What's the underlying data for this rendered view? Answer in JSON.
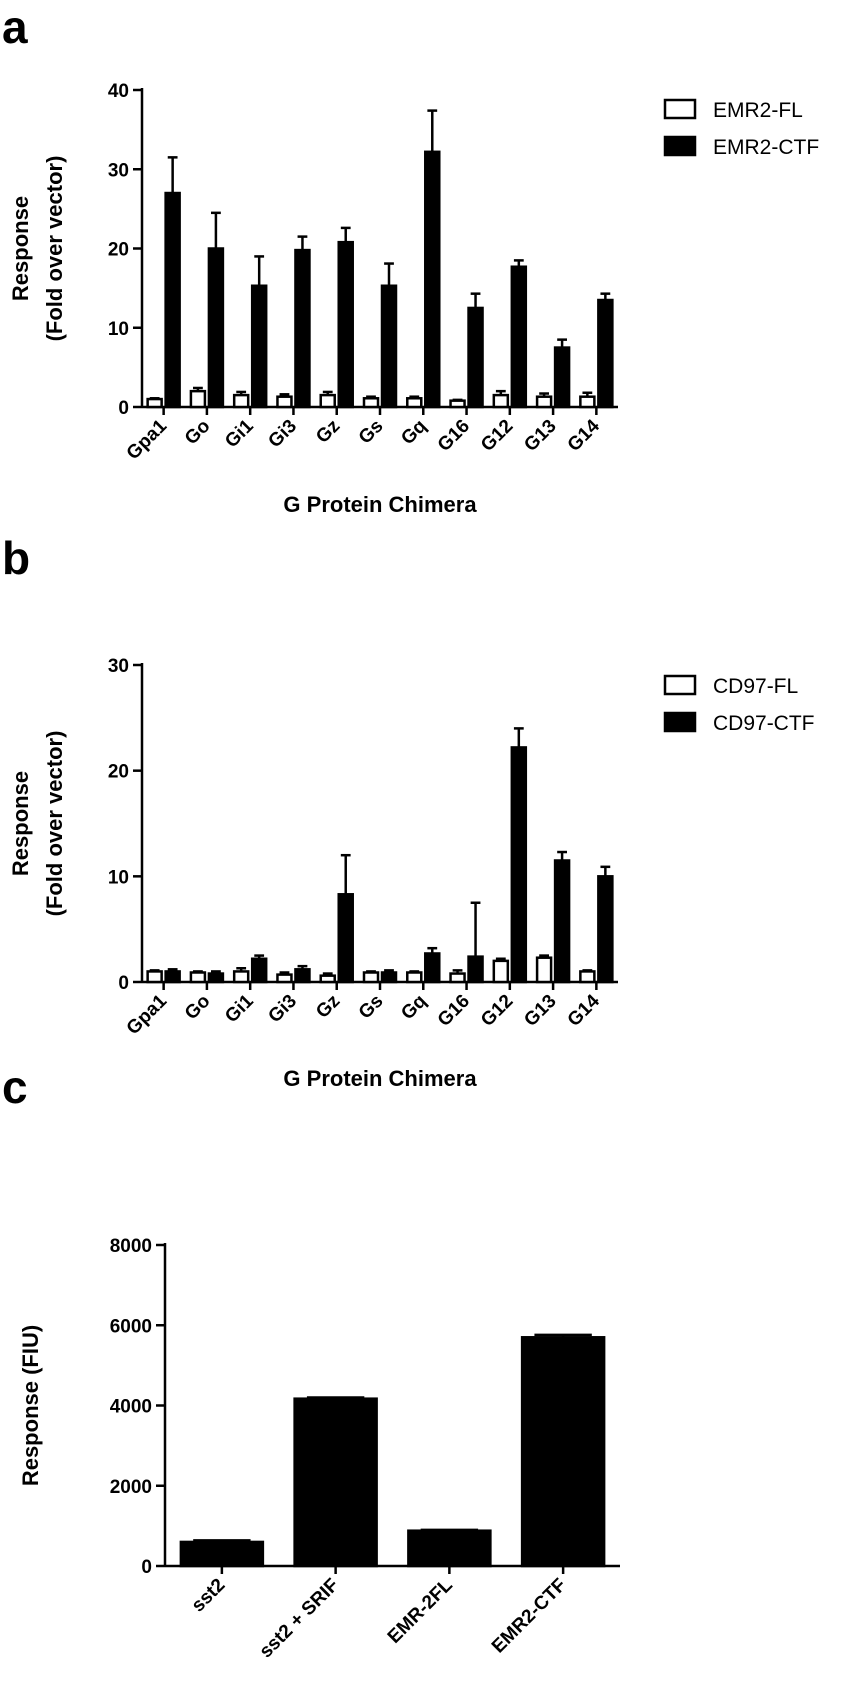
{
  "panels": [
    {
      "letter": "a"
    },
    {
      "letter": "b"
    },
    {
      "letter": "c"
    }
  ],
  "chart_data": [
    {
      "type": "bar",
      "categories": [
        "Gpa1",
        "Go",
        "Gi1",
        "Gi3",
        "Gz",
        "Gs",
        "Gq",
        "G16",
        "G12",
        "G13",
        "G14"
      ],
      "series": [
        {
          "name": "EMR2-FL",
          "fill": "#ffffff",
          "values": [
            1.0,
            2.0,
            1.5,
            1.3,
            1.5,
            1.1,
            1.1,
            0.8,
            1.5,
            1.3,
            1.3
          ],
          "errors": [
            0.1,
            0.4,
            0.4,
            0.3,
            0.4,
            0.2,
            0.2,
            0.1,
            0.5,
            0.4,
            0.5
          ]
        },
        {
          "name": "EMR2-CTF",
          "fill": "#000000",
          "values": [
            27,
            20,
            15.3,
            19.8,
            20.8,
            15.3,
            32.2,
            12.5,
            17.7,
            7.5,
            13.5
          ],
          "errors": [
            4.5,
            4.5,
            3.7,
            1.7,
            1.8,
            2.8,
            5.2,
            1.8,
            0.8,
            1.0,
            0.8
          ]
        }
      ],
      "xlabel": "G Protein Chimera",
      "ylabel": [
        "Response",
        "(Fold over vector)"
      ],
      "ylim": [
        0,
        40
      ],
      "yticks": [
        0,
        10,
        20,
        30,
        40
      ],
      "legend": "top-right",
      "grid": false
    },
    {
      "type": "bar",
      "categories": [
        "Gpa1",
        "Go",
        "Gi1",
        "Gi3",
        "Gz",
        "Gs",
        "Gq",
        "G16",
        "G12",
        "G13",
        "G14"
      ],
      "series": [
        {
          "name": "CD97-FL",
          "fill": "#ffffff",
          "values": [
            1.0,
            0.9,
            1.0,
            0.7,
            0.6,
            0.9,
            0.9,
            0.8,
            2.0,
            2.3,
            1.0
          ],
          "errors": [
            0.1,
            0.1,
            0.3,
            0.2,
            0.2,
            0.1,
            0.1,
            0.3,
            0.2,
            0.2,
            0.1
          ]
        },
        {
          "name": "CD97-CTF",
          "fill": "#000000",
          "values": [
            1.0,
            0.8,
            2.2,
            1.2,
            8.3,
            0.9,
            2.7,
            2.4,
            22.2,
            11.5,
            10.0
          ],
          "errors": [
            0.2,
            0.2,
            0.3,
            0.3,
            3.7,
            0.2,
            0.5,
            5.1,
            1.8,
            0.8,
            0.9
          ]
        }
      ],
      "xlabel": "G Protein Chimera",
      "ylabel": [
        "Response",
        "(Fold over vector)"
      ],
      "ylim": [
        0,
        30
      ],
      "yticks": [
        0,
        10,
        20,
        30
      ],
      "legend": "top-right",
      "grid": false
    },
    {
      "type": "bar",
      "categories": [
        "sst2",
        "sst2 + SRIF",
        "EMR-2FL",
        "EMR2-CTF"
      ],
      "series": [
        {
          "name": "",
          "fill": "#000000",
          "values": [
            600,
            4170,
            880,
            5700
          ],
          "errors": [
            40,
            30,
            20,
            60
          ]
        }
      ],
      "xlabel": "",
      "ylabel": [
        "Response (FIU)"
      ],
      "ylim": [
        0,
        8000
      ],
      "yticks": [
        0,
        2000,
        4000,
        6000,
        8000
      ],
      "legend": "none",
      "grid": false
    }
  ]
}
